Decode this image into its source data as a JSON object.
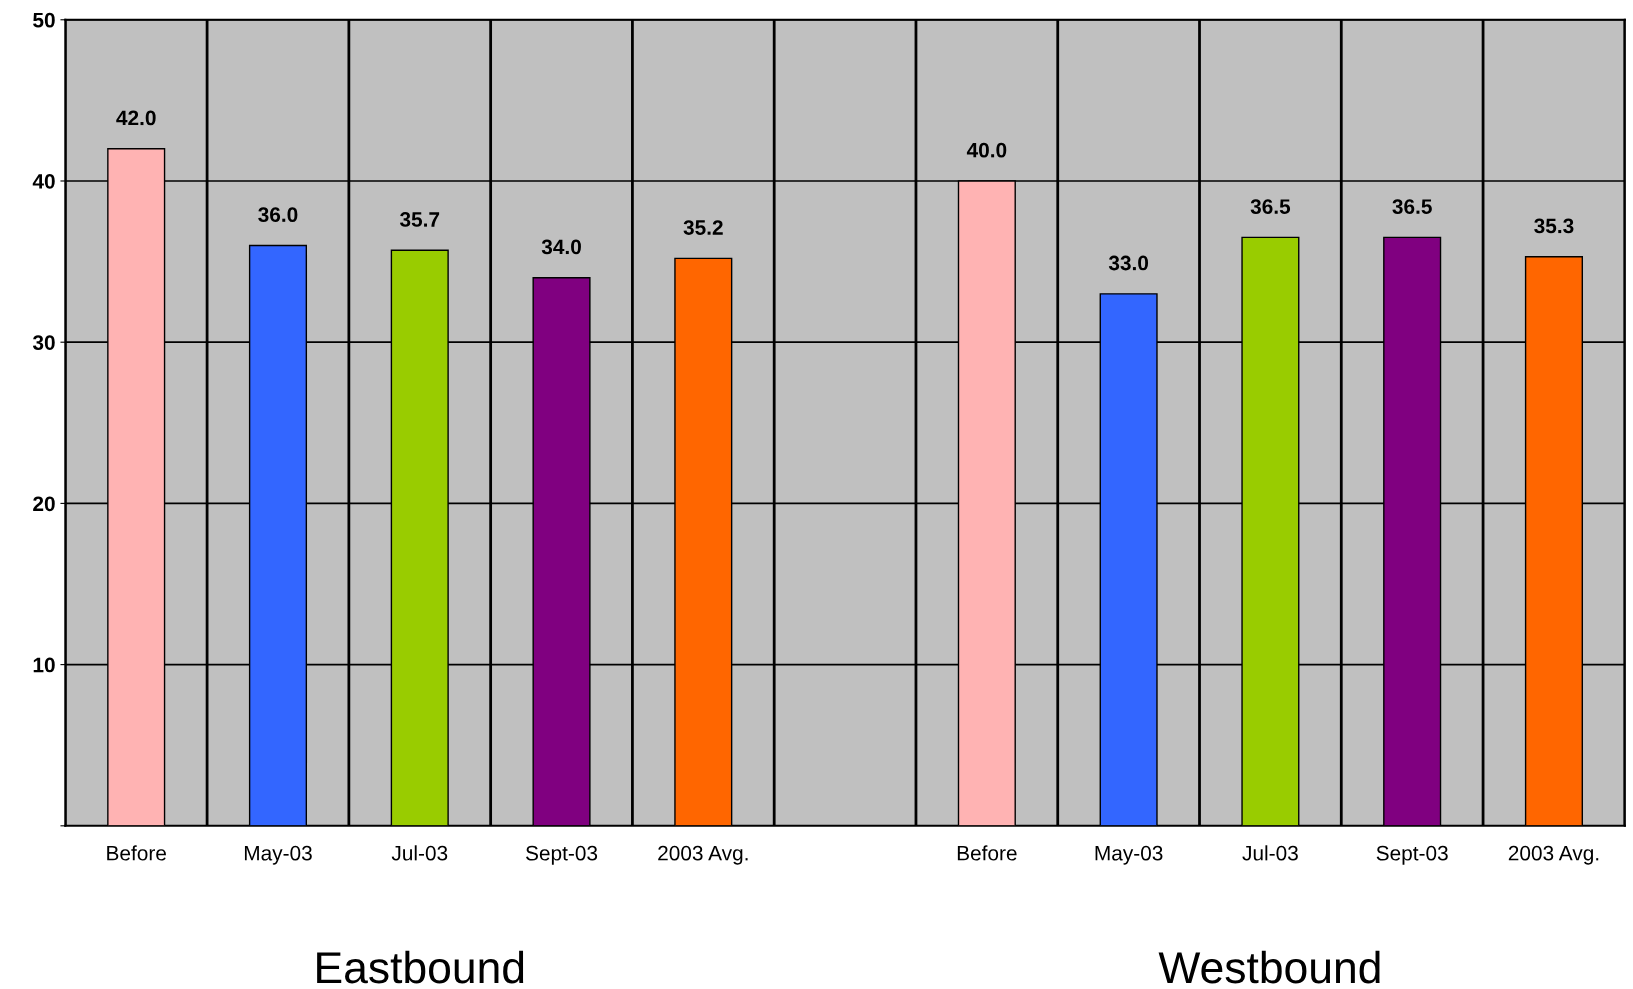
{
  "chart_data": {
    "type": "bar",
    "categories": [
      "Before",
      "May-03",
      "Jul-03",
      "Sept-03",
      "2003 Avg.",
      null,
      "Before",
      "May-03",
      "Jul-03",
      "Sept-03",
      "2003 Avg."
    ],
    "values": [
      42.0,
      36.0,
      35.7,
      34.0,
      35.2,
      null,
      40.0,
      33.0,
      36.5,
      36.5,
      35.3
    ],
    "colors": [
      "#ffb3b3",
      "#3366ff",
      "#99cc00",
      "#800080",
      "#ff6600",
      null,
      "#ffb3b3",
      "#3366ff",
      "#99cc00",
      "#800080",
      "#ff6600"
    ],
    "value_labels": [
      "42.0",
      "36.0",
      "35.7",
      "34.0",
      "35.2",
      null,
      "40.0",
      "33.0",
      "36.5",
      "36.5",
      "35.3"
    ],
    "ylim": [
      0,
      50
    ],
    "yticks": [
      {
        "value": 0,
        "label": null
      },
      10,
      20,
      30,
      40,
      50
    ],
    "grid": true,
    "annotations": [
      "Eastbound",
      "Westbound"
    ]
  }
}
